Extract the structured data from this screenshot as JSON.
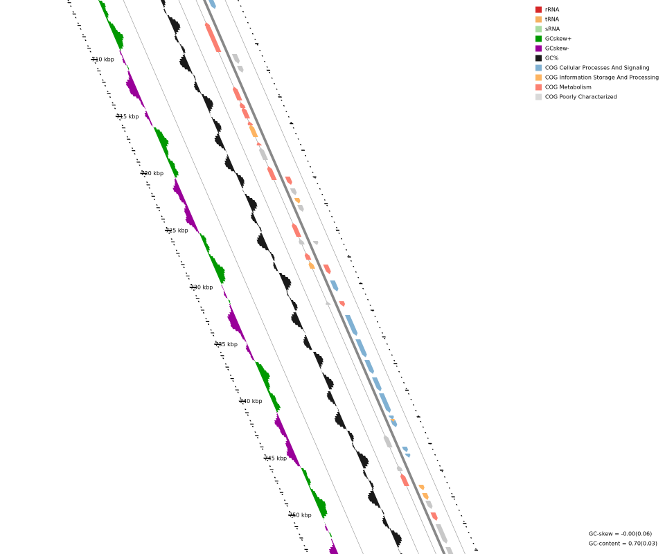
{
  "scale_labels": [
    "710 kbp",
    "715 kbp",
    "720 kbp",
    "725 kbp",
    "730 kbp",
    "735 kbp",
    "740 kbp",
    "745 kbp",
    "750 kbp"
  ],
  "legend": [
    {
      "label": "rRNA",
      "color": "#d62728"
    },
    {
      "label": "tRNA",
      "color": "#f5b060"
    },
    {
      "label": "sRNA",
      "color": "#a6dba0"
    },
    {
      "label": "GCskew+",
      "color": "#009900"
    },
    {
      "label": "GCskew-",
      "color": "#990099"
    },
    {
      "label": "GC%",
      "color": "#1a1a1a"
    },
    {
      "label": "COG Cellular Processes And Signaling",
      "color": "#80b1d3"
    },
    {
      "label": "COG Information Storage And Processing",
      "color": "#fdb462"
    },
    {
      "label": "COG Metabolism",
      "color": "#fb8072"
    },
    {
      "label": "COG Poorly Characterized",
      "color": "#d9d9d9"
    }
  ],
  "stats": [
    "GC-skew = -0.00(0.06)",
    "GC-content = 0.70(0.03)"
  ]
}
